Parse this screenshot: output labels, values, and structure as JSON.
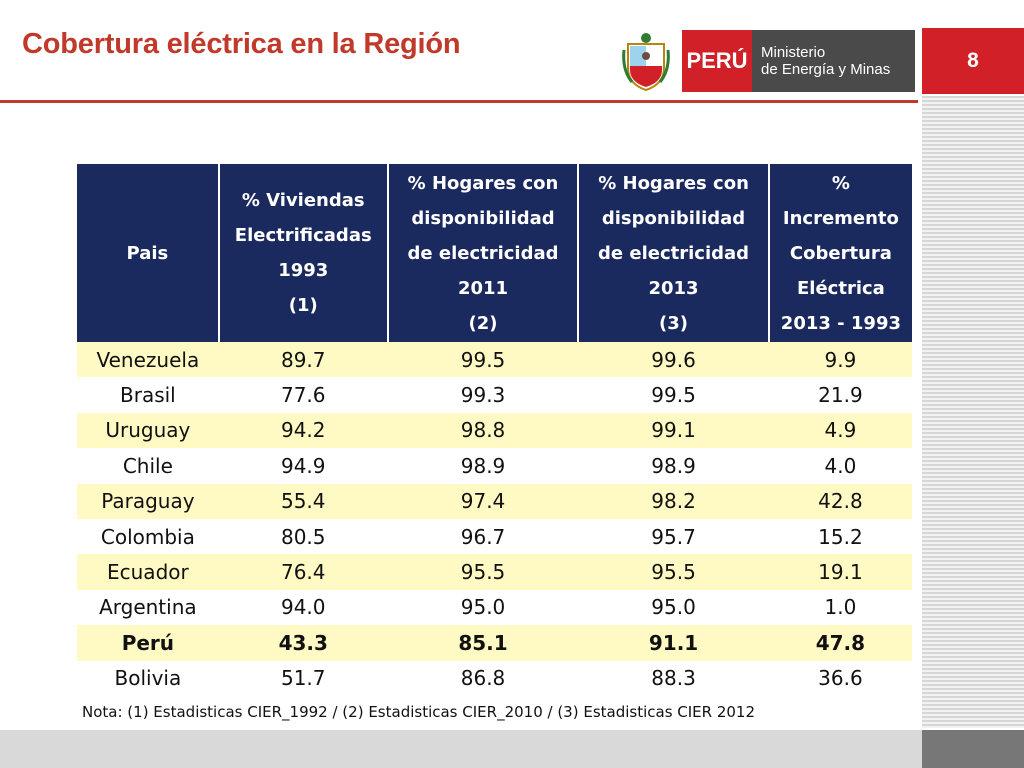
{
  "header": {
    "title": "Cobertura eléctrica en la Región",
    "slide_number": "8",
    "logo": {
      "country": "PERÚ",
      "ministry_line1": "Ministerio",
      "ministry_line2": "de Energía y Minas"
    }
  },
  "table": {
    "headers": [
      [
        "Pais"
      ],
      [
        "% Viviendas",
        "Electrificadas",
        "1993",
        "(1)"
      ],
      [
        "% Hogares con",
        "disponibilidad",
        "de electricidad",
        "2011",
        "(2)"
      ],
      [
        "% Hogares con",
        "disponibilidad",
        "de electricidad",
        "2013",
        "(3)"
      ],
      [
        "%",
        "Incremento",
        "Cobertura",
        "Eléctrica",
        "2013 - 1993"
      ]
    ],
    "rows": [
      {
        "pais": "Venezuela",
        "v1993": "89.7",
        "h2011": "99.5",
        "h2013": "99.6",
        "inc": "9.9",
        "bold": false
      },
      {
        "pais": "Brasil",
        "v1993": "77.6",
        "h2011": "99.3",
        "h2013": "99.5",
        "inc": "21.9",
        "bold": false
      },
      {
        "pais": "Uruguay",
        "v1993": "94.2",
        "h2011": "98.8",
        "h2013": "99.1",
        "inc": "4.9",
        "bold": false
      },
      {
        "pais": "Chile",
        "v1993": "94.9",
        "h2011": "98.9",
        "h2013": "98.9",
        "inc": "4.0",
        "bold": false
      },
      {
        "pais": "Paraguay",
        "v1993": "55.4",
        "h2011": "97.4",
        "h2013": "98.2",
        "inc": "42.8",
        "bold": false
      },
      {
        "pais": "Colombia",
        "v1993": "80.5",
        "h2011": "96.7",
        "h2013": "95.7",
        "inc": "15.2",
        "bold": false
      },
      {
        "pais": "Ecuador",
        "v1993": "76.4",
        "h2011": "95.5",
        "h2013": "95.5",
        "inc": "19.1",
        "bold": false
      },
      {
        "pais": "Argentina",
        "v1993": "94.0",
        "h2011": "95.0",
        "h2013": "95.0",
        "inc": "1.0",
        "bold": false
      },
      {
        "pais": "Perú",
        "v1993": "43.3",
        "h2011": "85.1",
        "h2013": "91.1",
        "inc": "47.8",
        "bold": true
      },
      {
        "pais": "Bolivia",
        "v1993": "51.7",
        "h2011": "86.8",
        "h2013": "88.3",
        "inc": "36.6",
        "bold": false
      }
    ]
  },
  "note": "Nota: (1) Estadisticas CIER_1992 / (2) Estadisticas CIER_2010 / (3) Estadisticas CIER 2012",
  "colors": {
    "title": "#c0392b",
    "header_bg": "#1b2a5e",
    "row_highlight": "#fff9c4",
    "brand_red": "#d12027"
  }
}
